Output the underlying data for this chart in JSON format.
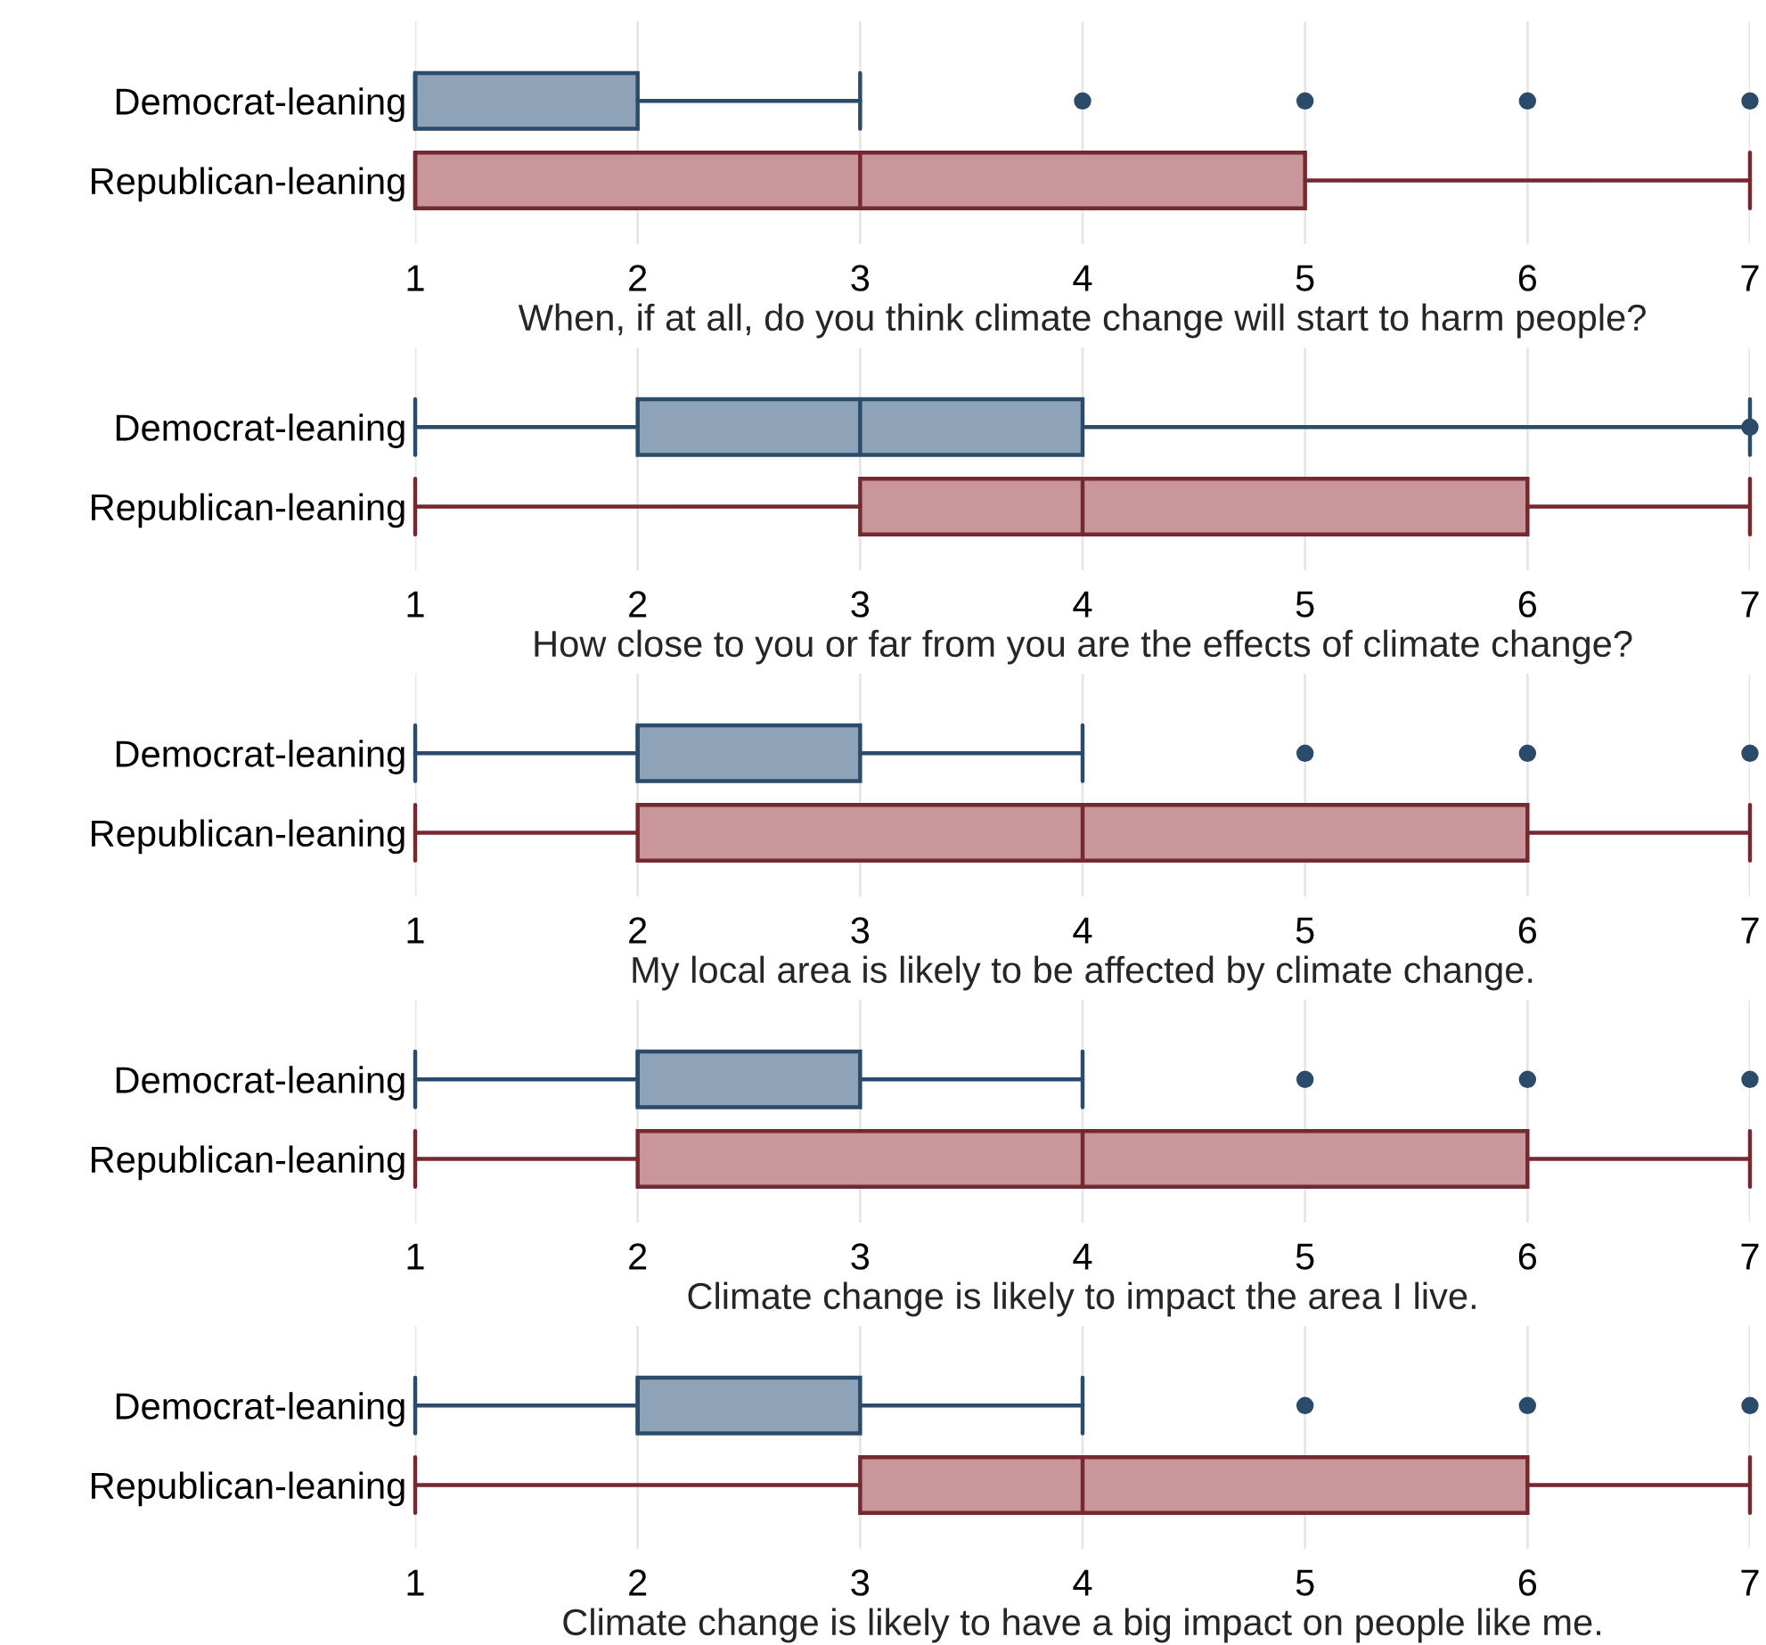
{
  "chart_data": [
    {
      "type": "box",
      "orientation": "horizontal",
      "categories": [
        "Democrat-leaning",
        "Republican-leaning"
      ],
      "colors": [
        "#8ea3b8",
        "#c9969b"
      ],
      "xlabel": "When, if at all, do you think climate change will start to harm people?",
      "xlim": [
        1,
        7
      ],
      "xticks": [
        1,
        2,
        3,
        4,
        5,
        6,
        7
      ],
      "grid": "x",
      "boxes": [
        {
          "low": 1,
          "q1": 1,
          "median": 1,
          "q3": 2,
          "high": 3,
          "outliers": [
            4,
            5,
            6,
            7
          ]
        },
        {
          "low": 1,
          "q1": 1,
          "median": 3,
          "q3": 5,
          "high": 7
        }
      ]
    },
    {
      "type": "box",
      "orientation": "horizontal",
      "categories": [
        "Democrat-leaning",
        "Republican-leaning"
      ],
      "colors": [
        "#8ea3b8",
        "#c9969b"
      ],
      "xlabel": "How close to you or far from you are the effects of climate change?",
      "xlim": [
        1,
        7
      ],
      "xticks": [
        1,
        2,
        3,
        4,
        5,
        6,
        7
      ],
      "grid": "x",
      "boxes": [
        {
          "low": 1,
          "q1": 2,
          "median": 3,
          "q3": 4,
          "high": 7,
          "outliers": [
            7
          ]
        },
        {
          "low": 1,
          "q1": 3,
          "median": 4,
          "q3": 6,
          "high": 7
        }
      ]
    },
    {
      "type": "box",
      "orientation": "horizontal",
      "categories": [
        "Democrat-leaning",
        "Republican-leaning"
      ],
      "colors": [
        "#8ea3b8",
        "#c9969b"
      ],
      "xlabel": "My local area is likely to be affected by climate change.",
      "xlim": [
        1,
        7
      ],
      "xticks": [
        1,
        2,
        3,
        4,
        5,
        6,
        7
      ],
      "grid": "x",
      "boxes": [
        {
          "low": 1,
          "q1": 2,
          "median": 2,
          "q3": 3,
          "high": 4,
          "outliers": [
            5,
            6,
            7
          ]
        },
        {
          "low": 1,
          "q1": 2,
          "median": 4,
          "q3": 6,
          "high": 7
        }
      ]
    },
    {
      "type": "box",
      "orientation": "horizontal",
      "categories": [
        "Democrat-leaning",
        "Republican-leaning"
      ],
      "colors": [
        "#8ea3b8",
        "#c9969b"
      ],
      "xlabel": "Climate change is likely to impact the area I live.",
      "xlim": [
        1,
        7
      ],
      "xticks": [
        1,
        2,
        3,
        4,
        5,
        6,
        7
      ],
      "grid": "x",
      "boxes": [
        {
          "low": 1,
          "q1": 2,
          "median": 2,
          "q3": 3,
          "high": 4,
          "outliers": [
            5,
            6,
            7
          ]
        },
        {
          "low": 1,
          "q1": 2,
          "median": 4,
          "q3": 6,
          "high": 7
        }
      ]
    },
    {
      "type": "box",
      "orientation": "horizontal",
      "categories": [
        "Democrat-leaning",
        "Republican-leaning"
      ],
      "colors": [
        "#8ea3b8",
        "#c9969b"
      ],
      "xlabel": "Climate change is likely to have a big impact on people like me.",
      "xlim": [
        1,
        7
      ],
      "xticks": [
        1,
        2,
        3,
        4,
        5,
        6,
        7
      ],
      "grid": "x",
      "boxes": [
        {
          "low": 1,
          "q1": 2,
          "median": 2,
          "q3": 3,
          "high": 4,
          "outliers": [
            5,
            6,
            7
          ]
        },
        {
          "low": 1,
          "q1": 3,
          "median": 4,
          "q3": 6,
          "high": 7
        }
      ]
    }
  ]
}
